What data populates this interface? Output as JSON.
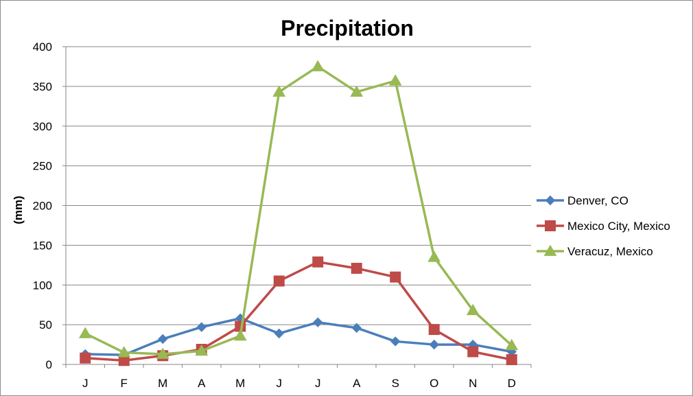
{
  "chart_data": {
    "type": "line",
    "title": "Precipitation",
    "xlabel": "",
    "ylabel": "(mm)",
    "categories": [
      "J",
      "F",
      "M",
      "A",
      "M",
      "J",
      "J",
      "A",
      "S",
      "O",
      "N",
      "D"
    ],
    "ylim": [
      0,
      400
    ],
    "yticks": [
      0,
      50,
      100,
      150,
      200,
      250,
      300,
      350,
      400
    ],
    "grid": true,
    "legend_position": "right",
    "series": [
      {
        "name": "Denver, CO",
        "color": "#4a7ebb",
        "marker": "diamond",
        "values": [
          13,
          12,
          32,
          47,
          58,
          39,
          53,
          46,
          29,
          25,
          25,
          16
        ]
      },
      {
        "name": "Mexico City, Mexico",
        "color": "#be4b48",
        "marker": "square",
        "values": [
          8,
          5,
          11,
          19,
          48,
          105,
          129,
          121,
          110,
          44,
          16,
          6
        ]
      },
      {
        "name": "Veracuz, Mexico",
        "color": "#98b954",
        "marker": "triangle",
        "values": [
          39,
          15,
          13,
          17,
          36,
          343,
          375,
          343,
          357,
          135,
          68,
          24
        ]
      }
    ]
  }
}
